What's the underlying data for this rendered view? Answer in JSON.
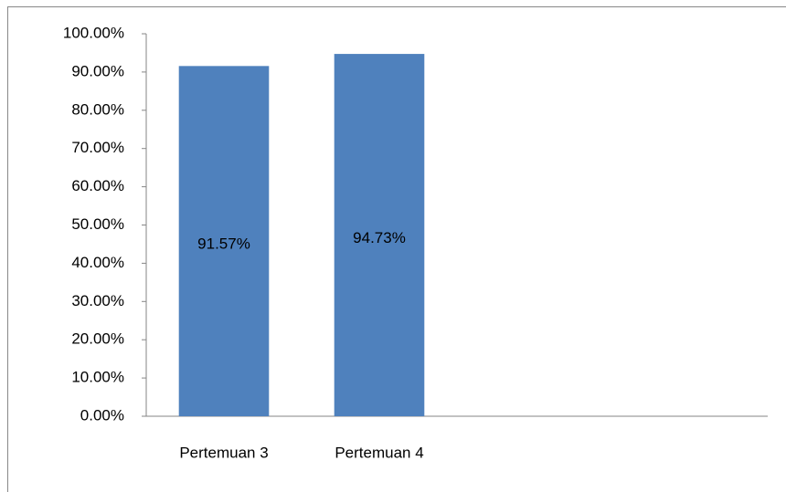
{
  "chart_data": {
    "type": "bar",
    "categories": [
      "Pertemuan 3",
      "Pertemuan 4",
      null,
      null
    ],
    "values": [
      91.57,
      94.73,
      null,
      null
    ],
    "value_labels": [
      "91.57%",
      "94.73%",
      null,
      null
    ],
    "color": "#4f81bd",
    "ylim": [
      0,
      100
    ],
    "yticks": [
      {
        "value": 0,
        "label": "0.00%"
      },
      {
        "value": 10,
        "label": "10.00%"
      },
      {
        "value": 20,
        "label": "20.00%"
      },
      {
        "value": 30,
        "label": "30.00%"
      },
      {
        "value": 40,
        "label": "40.00%"
      },
      {
        "value": 50,
        "label": "50.00%"
      },
      {
        "value": 60,
        "label": "60.00%"
      },
      {
        "value": 70,
        "label": "70.00%"
      },
      {
        "value": 80,
        "label": "80.00%"
      },
      {
        "value": 90,
        "label": "90.00%"
      },
      {
        "value": 100,
        "label": "100.00%"
      }
    ],
    "grid": false
  }
}
